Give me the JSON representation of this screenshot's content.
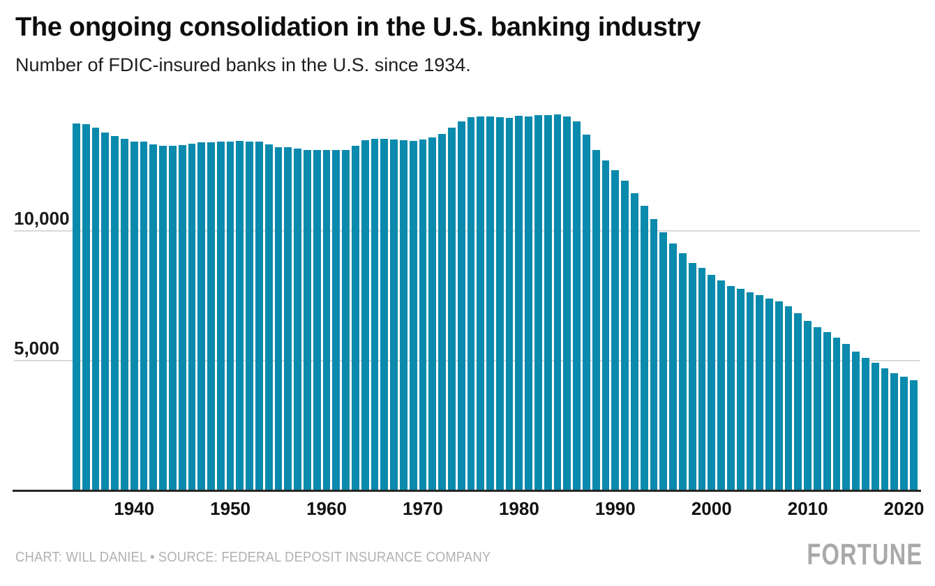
{
  "header": {
    "title": "The ongoing consolidation in the U.S. banking industry",
    "subtitle": "Number of FDIC-insured banks in the U.S. since 1934."
  },
  "footer": {
    "credit": "CHART: WILL DANIEL • SOURCE: FEDERAL DEPOSIT INSURANCE COMPANY",
    "brand": "FORTUNE"
  },
  "colors": {
    "bar": "#0a8aac",
    "gridline": "#d9d9d9",
    "axis": "#262626",
    "text": "#111111",
    "muted_text": "#b1b1b1"
  },
  "chart_data": {
    "type": "bar",
    "title": "The ongoing consolidation in the U.S. banking industry",
    "subtitle": "Number of FDIC-insured banks in the U.S. since 1934.",
    "xlabel": "",
    "ylabel": "",
    "ylim": [
      0,
      15000
    ],
    "grid": "horizontal",
    "legend": "none",
    "yticks": [
      {
        "value": 5000,
        "label": "5,000"
      },
      {
        "value": 10000,
        "label": "10,000"
      }
    ],
    "xticks": [
      1940,
      1950,
      1960,
      1970,
      1980,
      1990,
      2000,
      2010,
      2020
    ],
    "x": [
      1934,
      1935,
      1936,
      1937,
      1938,
      1939,
      1940,
      1941,
      1942,
      1943,
      1944,
      1945,
      1946,
      1947,
      1948,
      1949,
      1950,
      1951,
      1952,
      1953,
      1954,
      1955,
      1956,
      1957,
      1958,
      1959,
      1960,
      1961,
      1962,
      1963,
      1964,
      1965,
      1966,
      1967,
      1968,
      1969,
      1970,
      1971,
      1972,
      1973,
      1974,
      1975,
      1976,
      1977,
      1978,
      1979,
      1980,
      1981,
      1982,
      1983,
      1984,
      1985,
      1986,
      1987,
      1988,
      1989,
      1990,
      1991,
      1992,
      1993,
      1994,
      1995,
      1996,
      1997,
      1998,
      1999,
      2000,
      2001,
      2002,
      2003,
      2004,
      2005,
      2006,
      2007,
      2008,
      2009,
      2010,
      2011,
      2012,
      2013,
      2014,
      2015,
      2016,
      2017,
      2018,
      2019,
      2020,
      2021
    ],
    "values": [
      14146,
      14125,
      13973,
      13797,
      13661,
      13538,
      13442,
      13429,
      13343,
      13268,
      13268,
      13302,
      13359,
      13403,
      13419,
      13436,
      13446,
      13455,
      13439,
      13432,
      13323,
      13237,
      13218,
      13165,
      13124,
      13114,
      13126,
      13115,
      13124,
      13291,
      13493,
      13544,
      13538,
      13514,
      13487,
      13473,
      13511,
      13612,
      13733,
      13976,
      14230,
      14384,
      14411,
      14411,
      14391,
      14364,
      14434,
      14414,
      14451,
      14469,
      14496,
      14417,
      14210,
      13723,
      13123,
      12709,
      12347,
      11927,
      11463,
      10959,
      10452,
      9941,
      9528,
      9143,
      8774,
      8581,
      8315,
      8080,
      7888,
      7770,
      7631,
      7526,
      7401,
      7284,
      7087,
      6840,
      6530,
      6291,
      6096,
      5876,
      5643,
      5338,
      5112,
      4918,
      4715,
      4519,
      4377,
      4236
    ]
  }
}
